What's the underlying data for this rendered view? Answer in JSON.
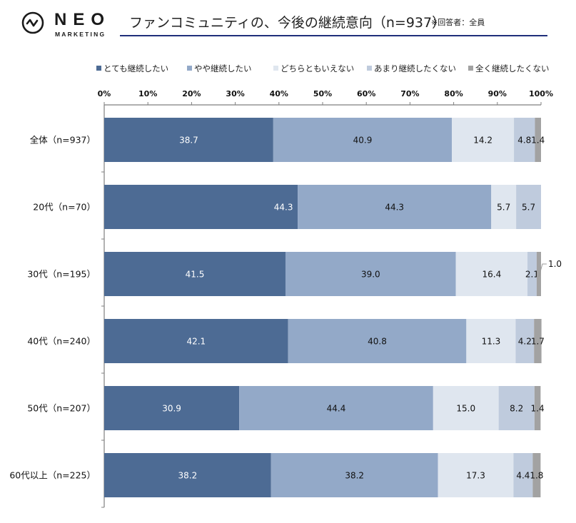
{
  "header": {
    "logo_main": "NEO",
    "logo_sub": "MARKETING",
    "title": "ファンコミュニティの、今後の継続意向（n=937）",
    "note": "※回答者：全員",
    "rule_color": "#1f2f7a"
  },
  "chart_data": {
    "type": "bar",
    "orientation": "horizontal",
    "stacked": "100%",
    "title": "ファンコミュニティの、今後の継続意向（n=937）",
    "xlabel": "",
    "ylabel": "",
    "xlim": [
      0,
      100
    ],
    "x_ticks": [
      "0%",
      "10%",
      "20%",
      "30%",
      "40%",
      "50%",
      "60%",
      "70%",
      "80%",
      "90%",
      "100%"
    ],
    "legend_position": "top",
    "grid": false,
    "categories": [
      "全体（n=937）",
      "20代（n=70）",
      "30代（n=195）",
      "40代（n=240）",
      "50代（n=207）",
      "60代以上（n=225）"
    ],
    "series": [
      {
        "name": "とても継続したい",
        "color": "#4d6b94",
        "label_color": "#ffffff",
        "values": [
          38.7,
          44.3,
          41.5,
          42.1,
          30.9,
          38.2
        ]
      },
      {
        "name": "やや継続したい",
        "color": "#93a9c8",
        "label_color": "#111111",
        "values": [
          40.9,
          44.3,
          39.0,
          40.8,
          44.4,
          38.2
        ]
      },
      {
        "name": "どちらともいえない",
        "color": "#dfe6ef",
        "label_color": "#111111",
        "values": [
          14.2,
          5.7,
          16.4,
          11.3,
          15.0,
          17.3
        ]
      },
      {
        "name": "あまり継続したくない",
        "color": "#bfcbdd",
        "label_color": "#111111",
        "values": [
          4.8,
          5.7,
          2.1,
          4.2,
          8.2,
          4.4
        ]
      },
      {
        "name": "全く継続したくない",
        "color": "#a2a2a2",
        "label_color": "#111111",
        "values": [
          1.4,
          0.0,
          1.0,
          1.7,
          1.4,
          1.8
        ]
      }
    ],
    "data_labels": [
      [
        "38.7",
        "40.9",
        "14.2",
        "4.8",
        "1.4"
      ],
      [
        "44.3",
        "44.3",
        "5.7",
        "5.7",
        ""
      ],
      [
        "41.5",
        "39.0",
        "16.4",
        "2.1",
        "1.0"
      ],
      [
        "42.1",
        "40.8",
        "11.3",
        "4.2",
        "1.7"
      ],
      [
        "30.9",
        "44.4",
        "15.0",
        "8.2",
        "1.4"
      ],
      [
        "38.2",
        "38.2",
        "17.3",
        "4.4",
        "1.8"
      ]
    ],
    "callout_labels": [
      {
        "category": "30代（n=195）",
        "series": "全く継続したくない",
        "text": "1.0"
      }
    ]
  }
}
